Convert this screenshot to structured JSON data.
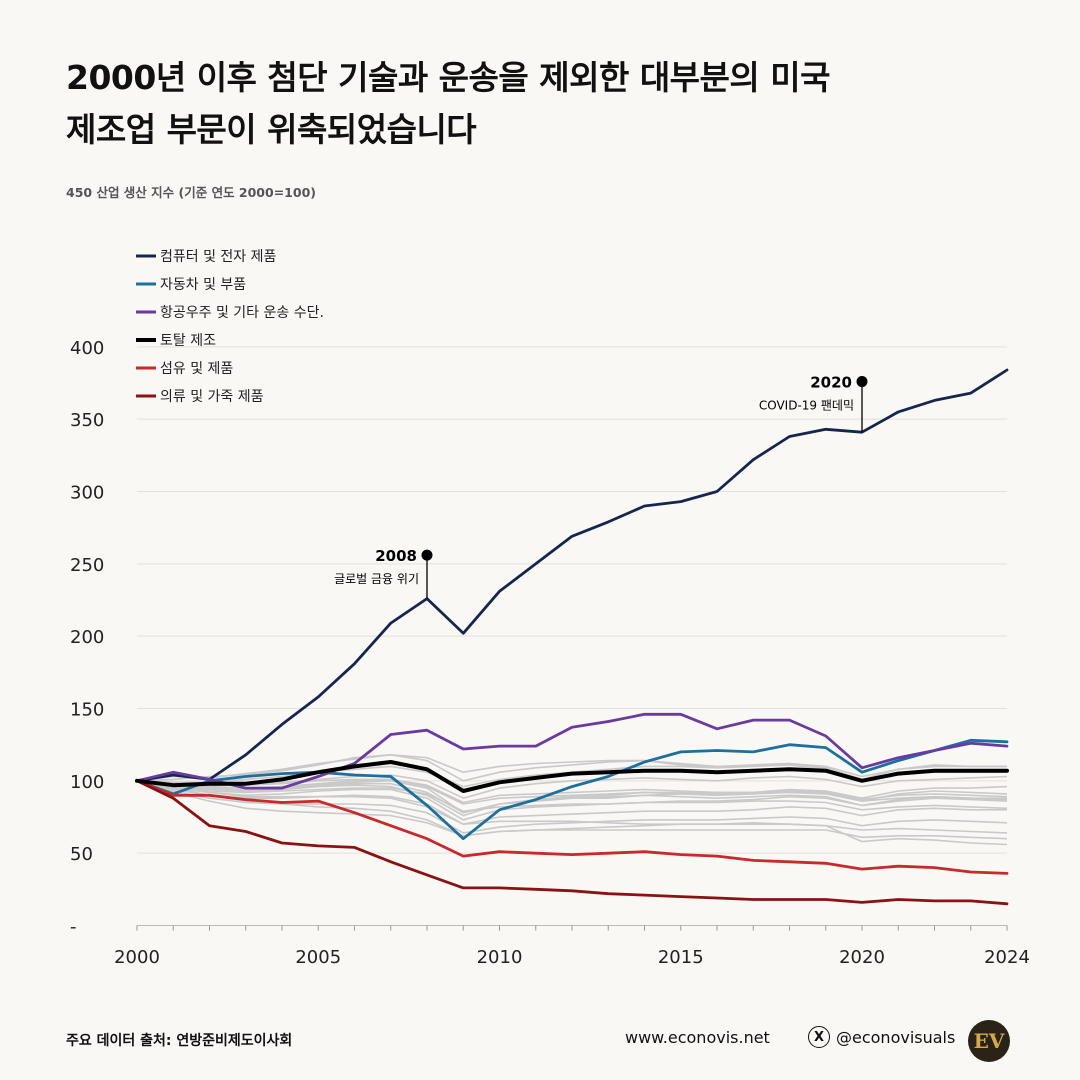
{
  "header": {
    "title_line1": "2000년 이후 첨단 기술과 운송을 제외한 대부분의 미국",
    "title_line2": "제조업 부문이 위축되었습니다",
    "subtitle": "450 산업 생산 지수 (기준 연도 2000=100)"
  },
  "footer": {
    "source": "주요 데이터 출처: 연방준비제도이사회",
    "website": "www.econovis.net",
    "social": "@econovisuals",
    "x_icon": "x-logo-icon",
    "logo_text": "EV"
  },
  "chart_data": {
    "type": "line",
    "title": "2000년 이후 첨단 기술과 운송을 제외한 대부분의 미국 제조업 부문이 위축되었습니다",
    "ylabel": "450 산업 생산 지수 (기준 연도 2000=100)",
    "xlabel": "",
    "ylim": [
      0,
      450
    ],
    "xlim": [
      2000,
      2024
    ],
    "y_ticks": [
      {
        "value": 400,
        "label": "400"
      },
      {
        "value": 350,
        "label": "350"
      },
      {
        "value": 300,
        "label": "300"
      },
      {
        "value": 250,
        "label": "250"
      },
      {
        "value": 200,
        "label": "200"
      },
      {
        "value": 150,
        "label": "150"
      },
      {
        "value": 100,
        "label": "100"
      },
      {
        "value": 50,
        "label": "50"
      },
      {
        "value": 0,
        "label": "-"
      }
    ],
    "x_ticks": [
      {
        "value": 2000,
        "label": "2000"
      },
      {
        "value": 2005,
        "label": "2005"
      },
      {
        "value": 2010,
        "label": "2010"
      },
      {
        "value": 2015,
        "label": "2015"
      },
      {
        "value": 2020,
        "label": "2020"
      },
      {
        "value": 2024,
        "label": "2024"
      }
    ],
    "grid": true,
    "legend_position": "top-left",
    "x": [
      2000,
      2001,
      2002,
      2003,
      2004,
      2005,
      2006,
      2007,
      2008,
      2009,
      2010,
      2011,
      2012,
      2013,
      2014,
      2015,
      2016,
      2017,
      2018,
      2019,
      2020,
      2021,
      2022,
      2023,
      2024
    ],
    "series": [
      {
        "name": "컴퓨터 및 전자 제품",
        "color": "#14264f",
        "values": [
          100,
          104,
          101,
          118,
          139,
          158,
          181,
          209,
          226,
          202,
          231,
          250,
          269,
          279,
          290,
          293,
          300,
          322,
          338,
          343,
          341,
          355,
          363,
          368,
          384
        ]
      },
      {
        "name": "자동차 및 부품",
        "color": "#1c6f9e",
        "values": [
          100,
          91,
          100,
          103,
          105,
          106,
          104,
          103,
          83,
          60,
          80,
          87,
          96,
          103,
          113,
          120,
          121,
          120,
          125,
          123,
          106,
          114,
          121,
          128,
          127
        ]
      },
      {
        "name": "항공우주 및 기타 운송 수단.",
        "color": "#6b3aa0",
        "values": [
          100,
          106,
          101,
          95,
          95,
          103,
          112,
          132,
          135,
          122,
          124,
          124,
          137,
          141,
          146,
          146,
          136,
          142,
          142,
          131,
          109,
          116,
          121,
          126,
          124
        ]
      },
      {
        "name": "토탈 제조",
        "color": "#000000",
        "values": [
          100,
          97,
          98,
          98,
          101,
          106,
          110,
          113,
          108,
          93,
          99,
          102,
          105,
          106,
          107,
          107,
          106,
          107,
          108,
          107,
          100,
          105,
          107,
          107,
          107
        ]
      },
      {
        "name": "섬유 및 제품",
        "color": "#c62a2a",
        "values": [
          100,
          90,
          90,
          87,
          85,
          86,
          78,
          69,
          60,
          48,
          51,
          50,
          49,
          50,
          51,
          49,
          48,
          45,
          44,
          43,
          39,
          41,
          40,
          37,
          36
        ]
      },
      {
        "name": "의류 및 가죽 제품",
        "color": "#8a1212",
        "values": [
          100,
          88,
          69,
          65,
          57,
          55,
          54,
          44,
          35,
          26,
          26,
          25,
          24,
          22,
          21,
          20,
          19,
          18,
          18,
          18,
          16,
          18,
          17,
          17,
          15
        ]
      }
    ],
    "background_series": [
      {
        "values": [
          100,
          103,
          102,
          105,
          108,
          112,
          115,
          118,
          114,
          100,
          106,
          109,
          111,
          113,
          114,
          112,
          110,
          111,
          112,
          109,
          101,
          108,
          111,
          110,
          110
        ]
      },
      {
        "values": [
          100,
          99,
          98,
          97,
          99,
          101,
          103,
          104,
          100,
          88,
          95,
          98,
          100,
          101,
          102,
          101,
          100,
          102,
          103,
          101,
          96,
          100,
          101,
          102,
          103
        ]
      },
      {
        "values": [
          100,
          96,
          94,
          93,
          94,
          96,
          97,
          96,
          90,
          76,
          84,
          87,
          89,
          90,
          92,
          91,
          90,
          91,
          93,
          92,
          86,
          91,
          93,
          92,
          91
        ]
      },
      {
        "values": [
          100,
          95,
          92,
          90,
          91,
          93,
          94,
          94,
          88,
          73,
          80,
          82,
          83,
          84,
          85,
          86,
          86,
          87,
          89,
          88,
          83,
          86,
          88,
          87,
          86
        ]
      },
      {
        "values": [
          100,
          97,
          96,
          95,
          96,
          98,
          100,
          101,
          97,
          85,
          90,
          91,
          92,
          93,
          94,
          93,
          92,
          92,
          93,
          92,
          87,
          90,
          91,
          90,
          89
        ]
      },
      {
        "values": [
          100,
          94,
          90,
          88,
          88,
          89,
          90,
          89,
          84,
          70,
          75,
          76,
          77,
          78,
          79,
          79,
          79,
          80,
          82,
          81,
          76,
          80,
          81,
          80,
          80
        ]
      },
      {
        "values": [
          100,
          98,
          95,
          94,
          95,
          97,
          99,
          100,
          95,
          78,
          84,
          86,
          88,
          89,
          90,
          89,
          88,
          89,
          90,
          89,
          83,
          87,
          89,
          88,
          88
        ]
      },
      {
        "values": [
          100,
          93,
          88,
          85,
          84,
          84,
          84,
          83,
          78,
          64,
          68,
          70,
          71,
          72,
          73,
          73,
          73,
          74,
          75,
          74,
          69,
          72,
          73,
          72,
          71
        ]
      },
      {
        "values": [
          100,
          96,
          92,
          89,
          89,
          89,
          89,
          88,
          82,
          70,
          72,
          72,
          72,
          71,
          70,
          70,
          70,
          70,
          70,
          69,
          66,
          67,
          66,
          65,
          64
        ]
      },
      {
        "values": [
          100,
          95,
          90,
          86,
          84,
          82,
          81,
          79,
          73,
          62,
          65,
          66,
          66,
          66,
          66,
          66,
          66,
          66,
          66,
          66,
          61,
          62,
          62,
          61,
          60
        ]
      },
      {
        "values": [
          100,
          92,
          86,
          81,
          79,
          78,
          77,
          76,
          71,
          62,
          65,
          66,
          67,
          68,
          69,
          70,
          70,
          71,
          70,
          69,
          58,
          60,
          59,
          57,
          56
        ]
      },
      {
        "values": [
          100,
          99,
          99,
          101,
          103,
          106,
          108,
          110,
          106,
          96,
          101,
          104,
          106,
          108,
          110,
          110,
          109,
          111,
          112,
          110,
          103,
          108,
          110,
          110,
          110
        ]
      },
      {
        "values": [
          100,
          101,
          103,
          104,
          107,
          111,
          116,
          118,
          116,
          106,
          110,
          112,
          113,
          114,
          114,
          111,
          109,
          110,
          111,
          108,
          100,
          105,
          106,
          106,
          106
        ]
      },
      {
        "values": [
          100,
          97,
          95,
          94,
          96,
          97,
          98,
          98,
          92,
          78,
          84,
          86,
          88,
          88,
          90,
          91,
          92,
          92,
          94,
          93,
          88,
          93,
          95,
          95,
          96
        ]
      },
      {
        "values": [
          100,
          98,
          97,
          97,
          98,
          100,
          101,
          101,
          96,
          84,
          88,
          89,
          90,
          91,
          92,
          92,
          91,
          91,
          92,
          91,
          86,
          88,
          89,
          88,
          87
        ]
      },
      {
        "values": [
          100,
          96,
          93,
          92,
          93,
          94,
          95,
          95,
          91,
          79,
          82,
          83,
          84,
          84,
          85,
          85,
          85,
          86,
          86,
          85,
          80,
          82,
          83,
          82,
          81
        ]
      }
    ],
    "annotations": [
      {
        "year": 2008,
        "value": 226,
        "label_year": "2008",
        "label_text": "글로벌 금융 위기",
        "label_value": 256
      },
      {
        "year": 2020,
        "value": 341,
        "label_year": "2020",
        "label_text": "COVID-19 팬데믹",
        "label_value": 376
      }
    ]
  }
}
